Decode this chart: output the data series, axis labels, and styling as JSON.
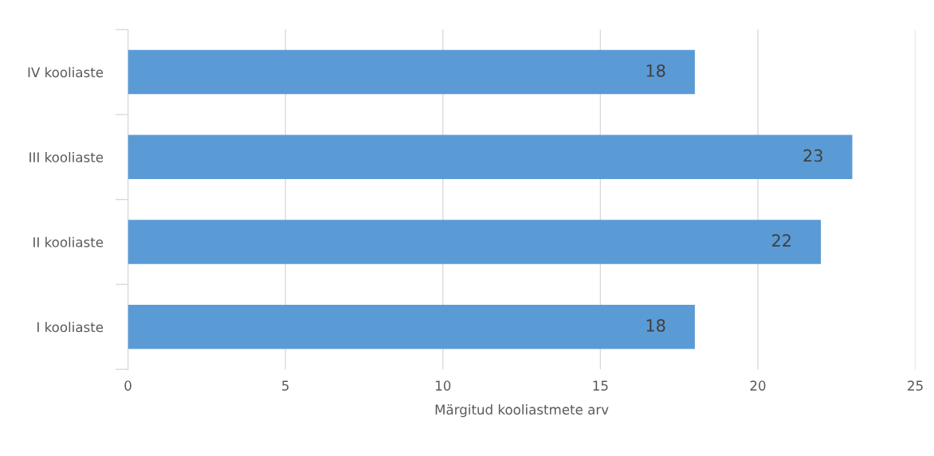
{
  "chart_data": {
    "type": "bar",
    "orientation": "horizontal",
    "xlabel": "Märgitud kooliastmete arv",
    "categories": [
      "IV kooliaste",
      "III kooliaste",
      "II kooliaste",
      "I kooliaste"
    ],
    "values": [
      18,
      23,
      22,
      18
    ],
    "color": "#5b9bd5",
    "data_labels": true,
    "xlim": [
      0,
      25
    ],
    "xticks": [
      0,
      5,
      10,
      15,
      20,
      25
    ],
    "grid": "x"
  }
}
